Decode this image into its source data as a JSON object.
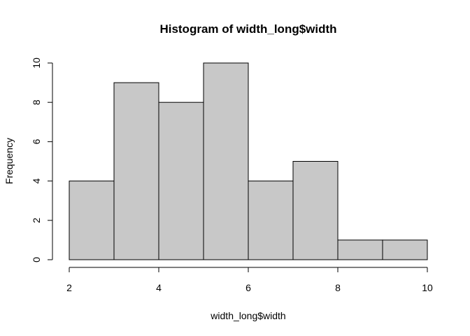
{
  "chart_data": {
    "type": "bar",
    "title": "Histogram of width_long$width",
    "xlabel": "width_long$width",
    "ylabel": "Frequency",
    "bins": [
      {
        "start": 2,
        "end": 3,
        "count": 4
      },
      {
        "start": 3,
        "end": 4,
        "count": 9
      },
      {
        "start": 4,
        "end": 5,
        "count": 8
      },
      {
        "start": 5,
        "end": 6,
        "count": 10
      },
      {
        "start": 6,
        "end": 7,
        "count": 4
      },
      {
        "start": 7,
        "end": 8,
        "count": 5
      },
      {
        "start": 8,
        "end": 9,
        "count": 1
      },
      {
        "start": 9,
        "end": 10,
        "count": 1
      }
    ],
    "x_ticks": [
      2,
      4,
      6,
      8,
      10
    ],
    "y_ticks": [
      0,
      2,
      4,
      6,
      8,
      10
    ],
    "xlim": [
      2,
      10
    ],
    "ylim": [
      0,
      10
    ],
    "grid": false,
    "bar_color": "#c8c8c8"
  }
}
